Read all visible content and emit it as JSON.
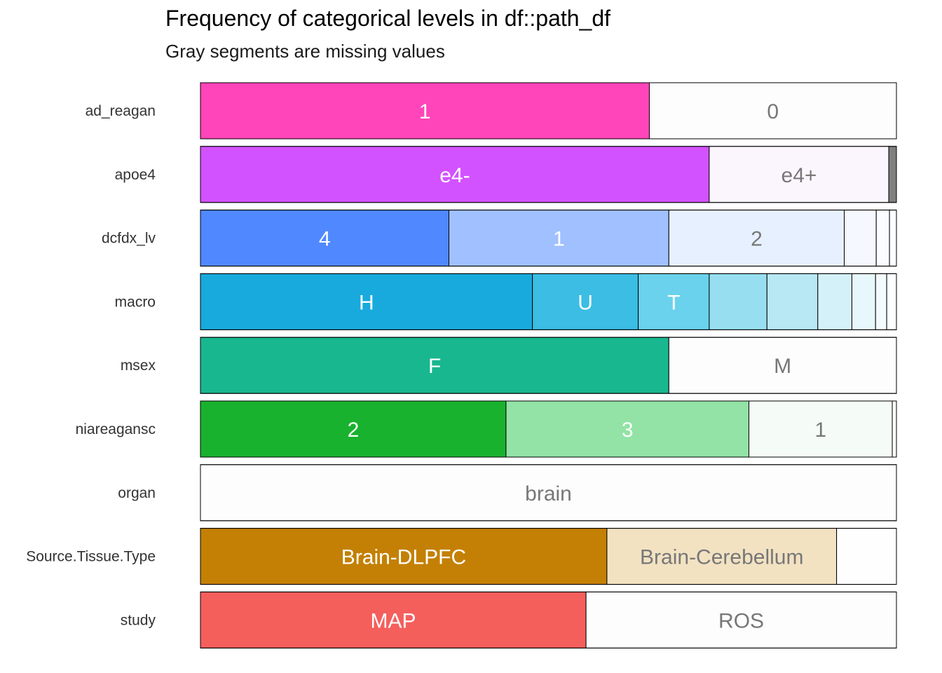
{
  "chart_data": {
    "type": "bar",
    "orientation": "horizontal",
    "stacked": "percent",
    "title": "Frequency of categorical levels in df::path_df",
    "subtitle": "Gray segments are missing values",
    "xlim": [
      0,
      1
    ],
    "grid": false,
    "legend": "none",
    "missing_color": "#808080",
    "rows": [
      {
        "label": "ad_reagan",
        "segments": [
          {
            "level": "1",
            "fraction": 0.645,
            "color": "#FF45B9",
            "text_color": "#FFFFFF"
          },
          {
            "level": "0",
            "fraction": 0.355,
            "color": "#FDFDFD",
            "text_color": "#777777"
          }
        ]
      },
      {
        "label": "apoe4",
        "segments": [
          {
            "level": "e4-",
            "fraction": 0.731,
            "color": "#D252FF",
            "text_color": "#FFFFFF"
          },
          {
            "level": "e4+",
            "fraction": 0.258,
            "color": "#FBF6FE",
            "text_color": "#777777"
          },
          {
            "level": "",
            "fraction": 0.011,
            "color": "#808080",
            "missing": true
          }
        ]
      },
      {
        "label": "dcfdx_lv",
        "segments": [
          {
            "level": "4",
            "fraction": 0.357,
            "color": "#5088FF",
            "text_color": "#FFFFFF"
          },
          {
            "level": "1",
            "fraction": 0.316,
            "color": "#A0C0FF",
            "text_color": "#FFFFFF"
          },
          {
            "level": "2",
            "fraction": 0.252,
            "color": "#E6F0FE",
            "text_color": "#777777"
          },
          {
            "level": "",
            "fraction": 0.046,
            "color": "#F5F9FF"
          },
          {
            "level": "",
            "fraction": 0.019,
            "color": "#FAFCFF"
          },
          {
            "level": "",
            "fraction": 0.01,
            "color": "#FDFEFF"
          }
        ]
      },
      {
        "label": "macro",
        "segments": [
          {
            "level": "H",
            "fraction": 0.477,
            "color": "#18AADD",
            "text_color": "#FFFFFF"
          },
          {
            "level": "U",
            "fraction": 0.152,
            "color": "#3BBDE4",
            "text_color": "#FFFFFF"
          },
          {
            "level": "T",
            "fraction": 0.102,
            "color": "#6AD2EC",
            "text_color": "#FFFFFF"
          },
          {
            "level": "",
            "fraction": 0.083,
            "color": "#97DFF0"
          },
          {
            "level": "",
            "fraction": 0.073,
            "color": "#B7E8F4"
          },
          {
            "level": "",
            "fraction": 0.049,
            "color": "#D4F1F9"
          },
          {
            "level": "",
            "fraction": 0.034,
            "color": "#E8F7FC"
          },
          {
            "level": "",
            "fraction": 0.016,
            "color": "#F4FBFD"
          },
          {
            "level": "",
            "fraction": 0.014,
            "color": "#FCFEFF"
          }
        ]
      },
      {
        "label": "msex",
        "segments": [
          {
            "level": "F",
            "fraction": 0.673,
            "color": "#18B78F",
            "text_color": "#FFFFFF"
          },
          {
            "level": "M",
            "fraction": 0.327,
            "color": "#FDFDFD",
            "text_color": "#777777"
          }
        ]
      },
      {
        "label": "niareagansc",
        "segments": [
          {
            "level": "2",
            "fraction": 0.439,
            "color": "#19B22F",
            "text_color": "#FFFFFF"
          },
          {
            "level": "3",
            "fraction": 0.349,
            "color": "#92E3A5",
            "text_color": "#FFFFFF"
          },
          {
            "level": "1",
            "fraction": 0.206,
            "color": "#F5FCF7",
            "text_color": "#777777"
          },
          {
            "level": "",
            "fraction": 0.006,
            "color": "#FDFFFD"
          }
        ]
      },
      {
        "label": "organ",
        "segments": [
          {
            "level": "brain",
            "fraction": 1.0,
            "color": "#FDFDFD",
            "text_color": "#777777"
          }
        ]
      },
      {
        "label": "Source.Tissue.Type",
        "segments": [
          {
            "level": "Brain-DLPFC",
            "fraction": 0.584,
            "color": "#C48004",
            "text_color": "#FFFFFF"
          },
          {
            "level": "Brain-Cerebellum",
            "fraction": 0.33,
            "color": "#F2E2C2",
            "text_color": "#777777"
          },
          {
            "level": "",
            "fraction": 0.086,
            "color": "#FEFEFE"
          }
        ]
      },
      {
        "label": "study",
        "segments": [
          {
            "level": "MAP",
            "fraction": 0.554,
            "color": "#F45F5C",
            "text_color": "#FFFFFF"
          },
          {
            "level": "ROS",
            "fraction": 0.446,
            "color": "#FDFDFD",
            "text_color": "#777777"
          }
        ]
      }
    ]
  }
}
